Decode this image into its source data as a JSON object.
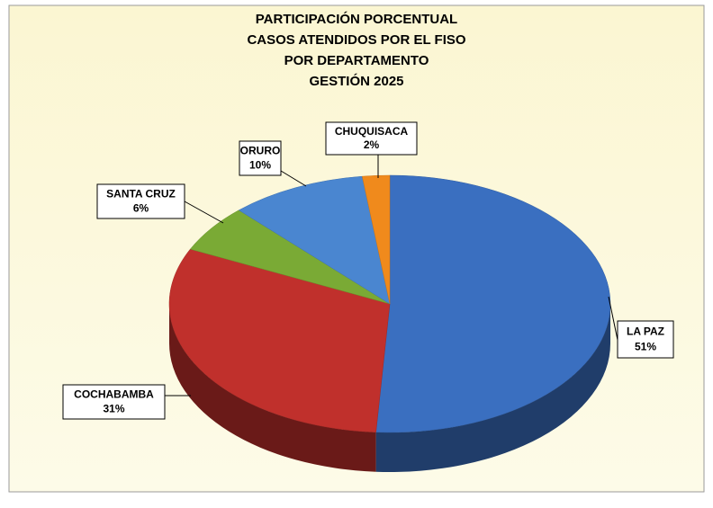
{
  "chart_data": {
    "type": "pie",
    "title": [
      "PARTICIPACIÓN PORCENTUAL",
      "CASOS ATENDIDOS POR EL FISO",
      "POR DEPARTAMENTO",
      "GESTIÓN 2025"
    ],
    "categories": [
      "LA PAZ",
      "COCHABAMBA",
      "SANTA CRUZ",
      "ORURO",
      "CHUQUISACA"
    ],
    "values": [
      51,
      31,
      6,
      10,
      2
    ],
    "value_labels": [
      "51%",
      "31%",
      "6%",
      "10%",
      "2%"
    ],
    "colors": [
      "#3a6fc0",
      "#c0302c",
      "#7aaa35",
      "#4a86d0",
      "#f08a1c"
    ]
  }
}
